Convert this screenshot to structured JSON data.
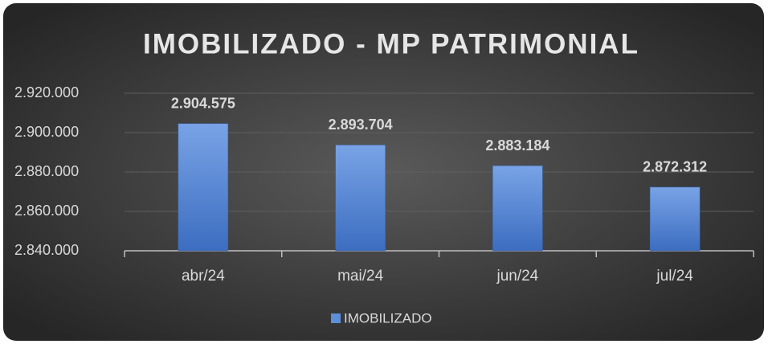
{
  "chart_data": {
    "type": "bar",
    "title": "IMOBILIZADO - MP PATRIMONIAL",
    "categories": [
      "abr/24",
      "mai/24",
      "jun/24",
      "jul/24"
    ],
    "series": [
      {
        "name": "IMOBILIZADO",
        "color": "#5b8fd9",
        "values": [
          2904575,
          2893704,
          2883184,
          2872312
        ],
        "value_labels": [
          "2.904.575",
          "2.893.704",
          "2.883.184",
          "2.872.312"
        ]
      }
    ],
    "ylim": [
      2840000,
      2920000
    ],
    "yticks": [
      {
        "value": 2840000,
        "label": "2.840.000"
      },
      {
        "value": 2860000,
        "label": "2.860.000"
      },
      {
        "value": 2880000,
        "label": "2.880.000"
      },
      {
        "value": 2900000,
        "label": "2.900.000"
      },
      {
        "value": 2920000,
        "label": "2.920.000"
      }
    ],
    "grid": true,
    "legend": "bottom"
  }
}
